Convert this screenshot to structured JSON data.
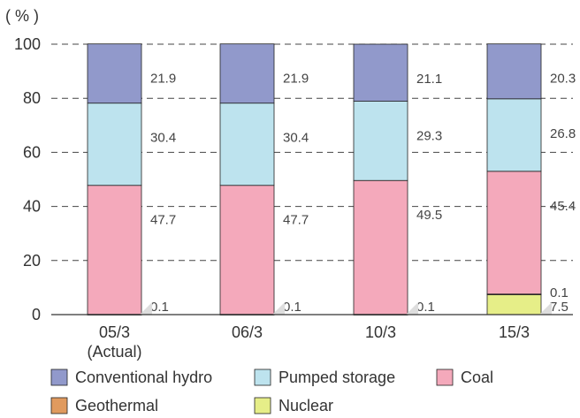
{
  "chart_data": {
    "type": "bar",
    "stacked": true,
    "y_unit_label": "( % )",
    "ylim": [
      0,
      100
    ],
    "yticks": [
      0,
      20,
      40,
      60,
      80,
      100
    ],
    "grid": "dashed horizontal",
    "categories": [
      [
        "05/3",
        "(Actual)"
      ],
      [
        "06/3"
      ],
      [
        "10/3"
      ],
      [
        "15/3"
      ]
    ],
    "series": [
      {
        "name": "Nuclear",
        "color": "#e6ee88",
        "values": [
          0,
          0,
          0,
          7.5
        ],
        "labels": [
          "",
          "",
          "",
          "7.5"
        ]
      },
      {
        "name": "Geothermal",
        "color": "#e09a5e",
        "values": [
          0.1,
          0.1,
          0.1,
          0.1
        ],
        "labels": [
          "0.1",
          "0.1",
          "0.1",
          "0.1"
        ]
      },
      {
        "name": "Coal",
        "color": "#f4a9bb",
        "values": [
          47.7,
          47.7,
          49.5,
          45.4
        ],
        "labels": [
          "47.7",
          "47.7",
          "49.5",
          "45.4"
        ]
      },
      {
        "name": "Pumped storage",
        "color": "#bde3ee",
        "values": [
          30.4,
          30.4,
          29.3,
          26.8
        ],
        "labels": [
          "30.4",
          "30.4",
          "29.3",
          "26.8"
        ]
      },
      {
        "name": "Conventional hydro",
        "color": "#9199cb",
        "values": [
          21.9,
          21.9,
          21.1,
          20.3
        ],
        "labels": [
          "21.9",
          "21.9",
          "21.1",
          "20.3"
        ]
      }
    ],
    "legend": {
      "placement": "bottom",
      "order": [
        "Conventional hydro",
        "Pumped storage",
        "Coal",
        "Geothermal",
        "Nuclear"
      ]
    }
  }
}
